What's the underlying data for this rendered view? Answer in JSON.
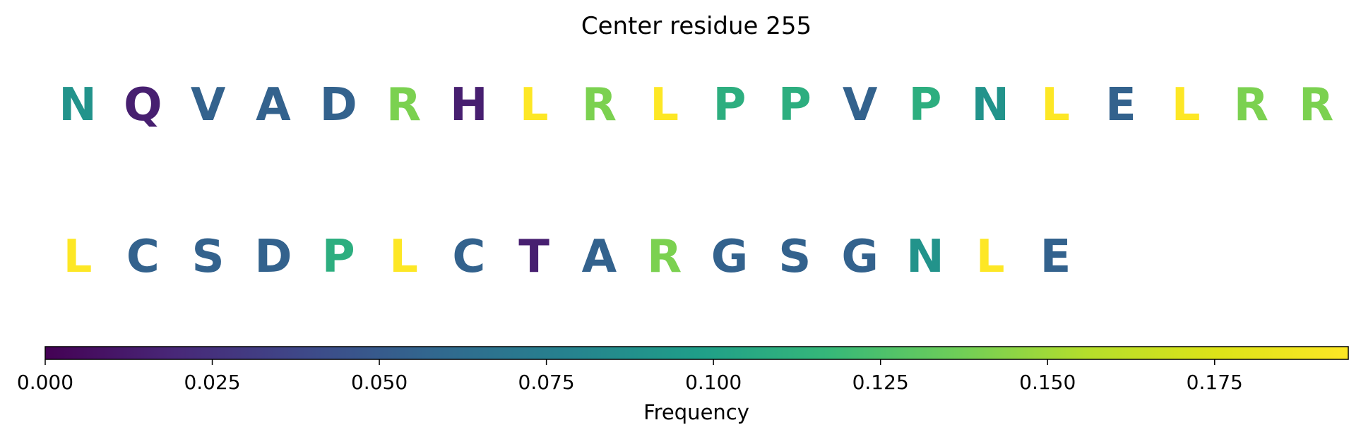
{
  "chart_data": {
    "type": "heatmap",
    "title": "Center residue 255",
    "colormap": "viridis",
    "colorbar": {
      "label": "Frequency",
      "range": [
        0,
        0.195
      ],
      "ticks": [
        "0.000",
        "0.025",
        "0.050",
        "0.075",
        "0.100",
        "0.125",
        "0.150",
        "0.175"
      ],
      "tick_values": [
        0,
        0.025,
        0.05,
        0.075,
        0.1,
        0.125,
        0.15,
        0.175
      ],
      "orientation": "horizontal",
      "placement": "bottom"
    },
    "rows": [
      {
        "residues": [
          "N",
          "Q",
          "V",
          "A",
          "D",
          "R",
          "H",
          "L",
          "R",
          "L",
          "P",
          "P",
          "V",
          "P",
          "N",
          "L",
          "E",
          "L",
          "R",
          "R"
        ],
        "values": [
          0.09,
          0.015,
          0.055,
          0.055,
          0.055,
          0.14,
          0.015,
          0.195,
          0.14,
          0.195,
          0.11,
          0.11,
          0.055,
          0.11,
          0.09,
          0.195,
          0.055,
          0.195,
          0.14,
          0.14
        ]
      },
      {
        "residues": [
          "L",
          "C",
          "S",
          "D",
          "P",
          "L",
          "C",
          "T",
          "A",
          "R",
          "G",
          "S",
          "G",
          "N",
          "L",
          "E"
        ],
        "values": [
          0.195,
          0.055,
          0.055,
          0.055,
          0.11,
          0.195,
          0.055,
          0.015,
          0.055,
          0.14,
          0.055,
          0.055,
          0.055,
          0.09,
          0.195,
          0.055
        ]
      }
    ]
  }
}
